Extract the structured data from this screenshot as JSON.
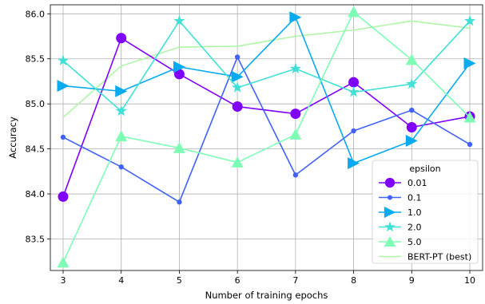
{
  "chart_data": {
    "type": "line",
    "title": "",
    "xlabel": "Number of training epochs",
    "ylabel": "Accuracy",
    "x": [
      3,
      4,
      5,
      6,
      7,
      8,
      9,
      10
    ],
    "x_ticks": [
      "3",
      "4",
      "5",
      "6",
      "7",
      "8",
      "9",
      "10"
    ],
    "y_ticks": [
      "83.5",
      "84.0",
      "84.5",
      "85.0",
      "85.5",
      "86.0"
    ],
    "xlim": [
      2.78,
      10.22
    ],
    "ylim": [
      83.15,
      86.1
    ],
    "grid": true,
    "legend": {
      "title": "epsilon",
      "placement": "lower right"
    },
    "series": [
      {
        "name": "0.01",
        "color": "#7f00ff",
        "marker": "circle",
        "values": [
          83.97,
          85.73,
          85.33,
          84.97,
          84.89,
          85.24,
          84.74,
          84.86
        ]
      },
      {
        "name": "0.1",
        "color": "#4062fa",
        "marker": "small-circle",
        "values": [
          84.63,
          84.3,
          83.91,
          85.52,
          84.21,
          84.7,
          84.93,
          84.55
        ]
      },
      {
        "name": "1.0",
        "color": "#08abf0",
        "marker": "triangle-right",
        "values": [
          85.2,
          85.14,
          85.41,
          85.3,
          85.96,
          84.34,
          84.59,
          85.45
        ]
      },
      {
        "name": "2.0",
        "color": "#41e0d6",
        "marker": "star",
        "values": [
          85.48,
          84.92,
          85.92,
          85.18,
          85.39,
          85.13,
          85.22,
          85.92
        ]
      },
      {
        "name": "5.0",
        "color": "#7efdb5",
        "marker": "triangle-up",
        "values": [
          83.24,
          84.64,
          84.51,
          84.35,
          84.66,
          86.02,
          85.49,
          84.85
        ]
      },
      {
        "name": "BERT-PT (best)",
        "color": "#b0f5a8",
        "marker": "none",
        "values": [
          84.85,
          85.42,
          85.63,
          85.64,
          85.75,
          85.82,
          85.92,
          85.84
        ]
      }
    ]
  }
}
